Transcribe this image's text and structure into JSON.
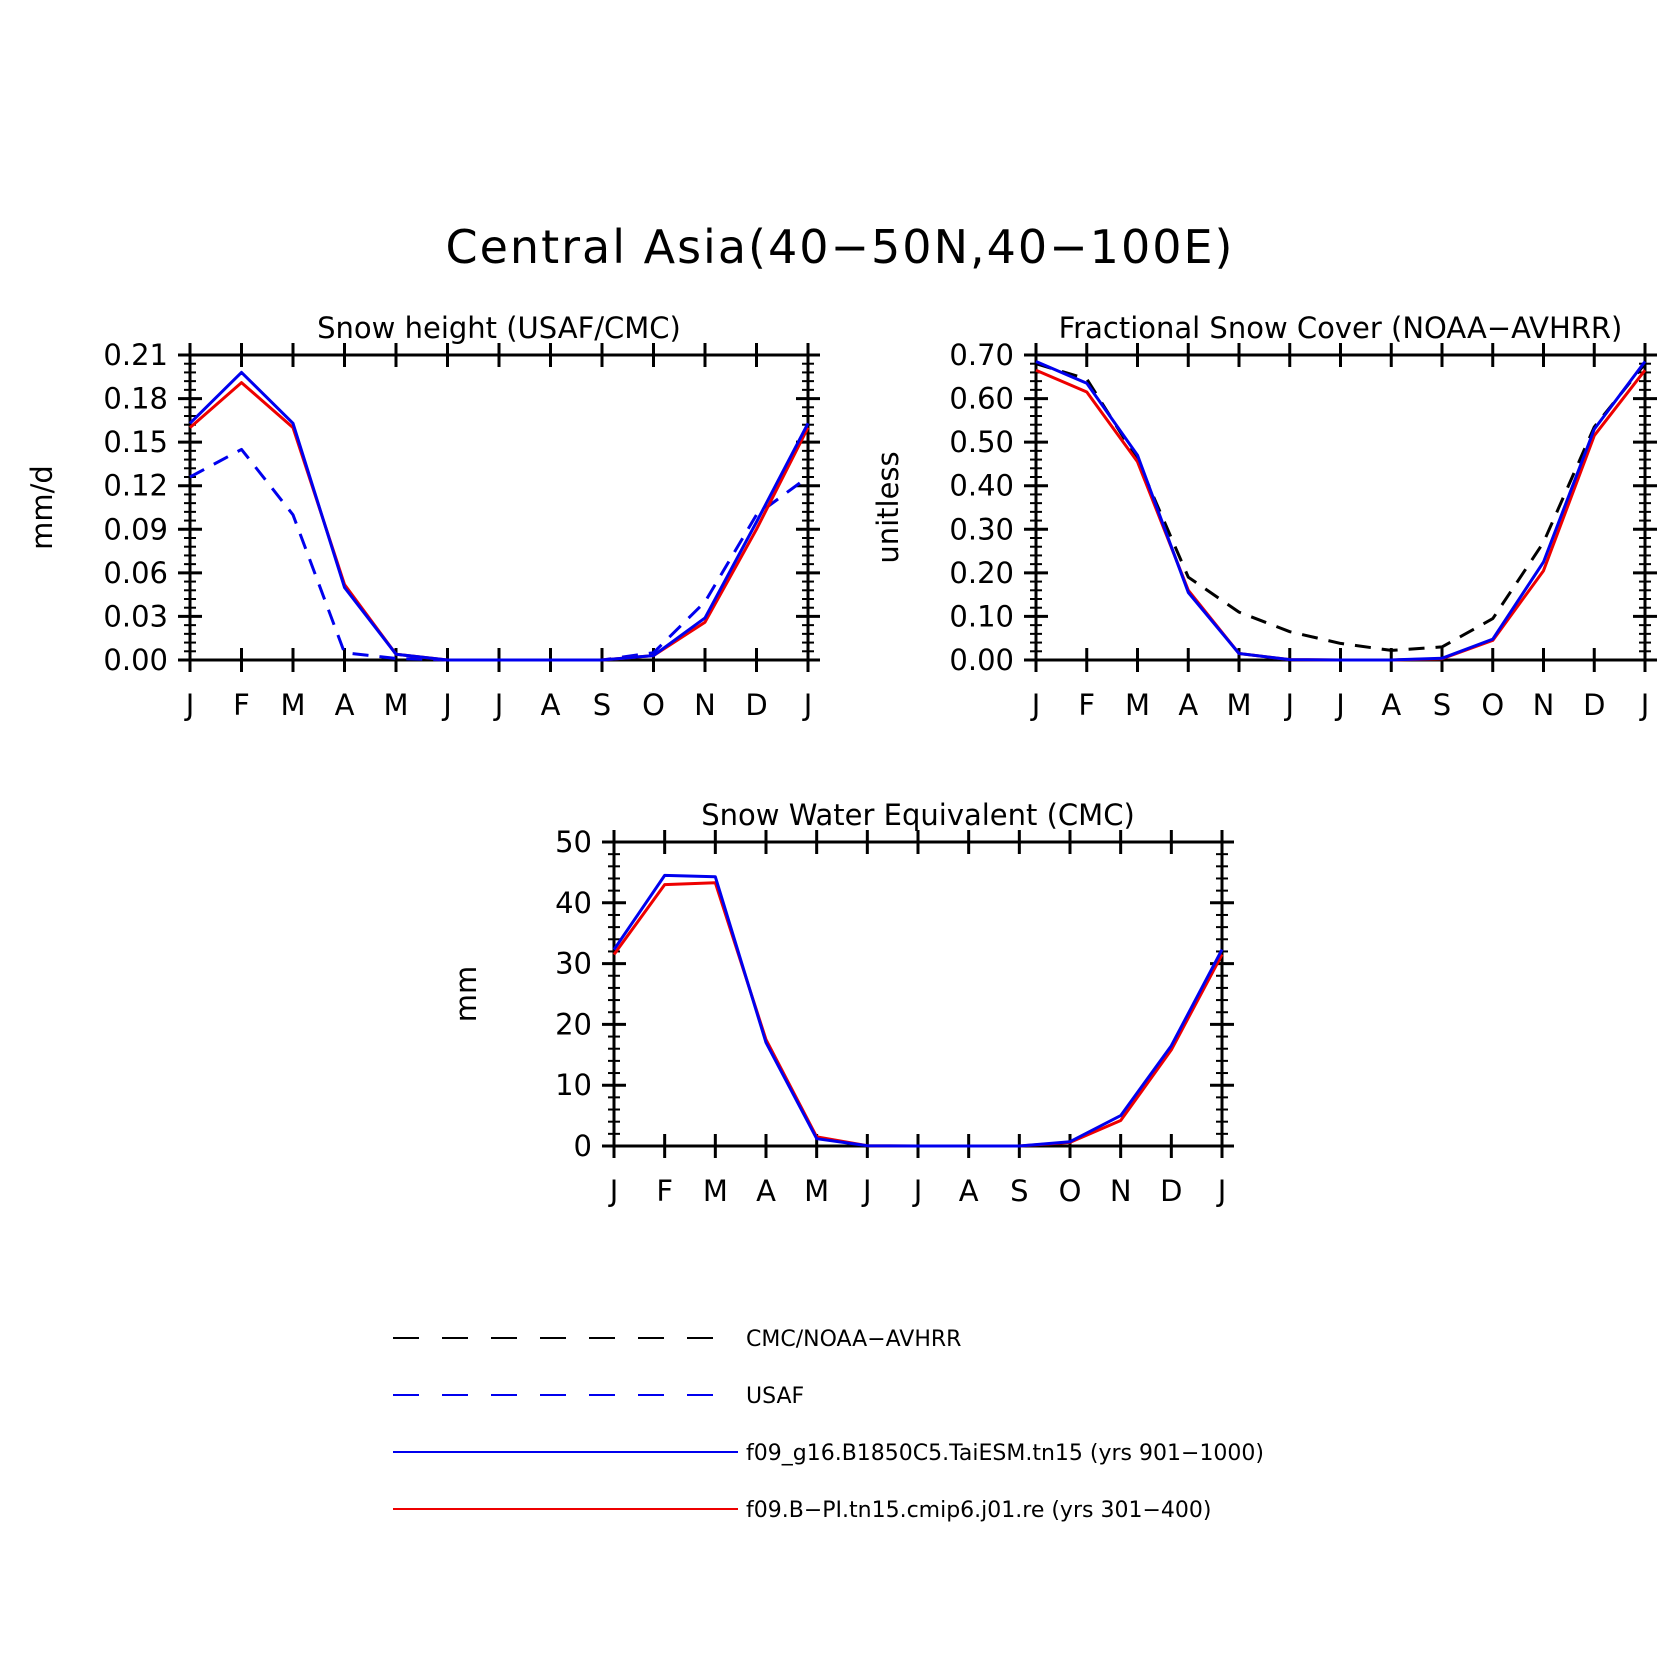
{
  "figure": {
    "title": "Central Asia(40−50N,40−100E)"
  },
  "months": [
    "J",
    "F",
    "M",
    "A",
    "M",
    "J",
    "J",
    "A",
    "S",
    "O",
    "N",
    "D",
    "J"
  ],
  "colors": {
    "model1": "#0000ee",
    "model2": "#ee0000",
    "obs_cmc": "#000000",
    "obs_usaf": "#0000ee"
  },
  "legend": [
    {
      "label": "CMC/NOAA−AVHRR",
      "color": "#000000",
      "dash": true
    },
    {
      "label": "USAF",
      "color": "#0000ee",
      "dash": true
    },
    {
      "label": "f09_g16.B1850C5.TaiESM.tn15 (yrs 901−1000)",
      "color": "#0000ee",
      "dash": false
    },
    {
      "label": "f09.B−PI.tn15.cmip6.j01.re (yrs 301−400)",
      "color": "#ee0000",
      "dash": false
    }
  ],
  "chart_data": [
    {
      "type": "line",
      "title": "Snow height (USAF/CMC)",
      "ylabel": "mm/d",
      "xlabel": "",
      "ylim": [
        0,
        0.21
      ],
      "yticks": [
        "0.00",
        "0.03",
        "0.06",
        "0.09",
        "0.12",
        "0.15",
        "0.18",
        "0.21"
      ],
      "series": [
        {
          "name": "USAF",
          "color": "#0000ee",
          "dash": true,
          "values": [
            0.126,
            0.145,
            0.1,
            0.005,
            0.001,
            0.0,
            0.0,
            0.0,
            0.0,
            0.005,
            0.04,
            0.1,
            0.126
          ]
        },
        {
          "name": "f09.B−PI.tn15.cmip6.j01.re (yrs 301−400)",
          "color": "#ee0000",
          "dash": false,
          "values": [
            0.16,
            0.191,
            0.16,
            0.052,
            0.004,
            0.0,
            0.0,
            0.0,
            0.0,
            0.003,
            0.026,
            0.09,
            0.16
          ]
        },
        {
          "name": "f09_g16.B1850C5.TaiESM.tn15 (yrs 901−1000)",
          "color": "#0000ee",
          "dash": false,
          "values": [
            0.163,
            0.198,
            0.163,
            0.05,
            0.004,
            0.0,
            0.0,
            0.0,
            0.0,
            0.003,
            0.029,
            0.095,
            0.163
          ]
        }
      ]
    },
    {
      "type": "line",
      "title": "Fractional Snow Cover (NOAA−AVHRR)",
      "ylabel": "unitless",
      "xlabel": "",
      "ylim": [
        0,
        0.7
      ],
      "yticks": [
        "0.00",
        "0.10",
        "0.20",
        "0.30",
        "0.40",
        "0.50",
        "0.60",
        "0.70"
      ],
      "series": [
        {
          "name": "CMC/NOAA−AVHRR",
          "color": "#000000",
          "dash": true,
          "values": [
            0.68,
            0.645,
            0.46,
            0.19,
            0.11,
            0.065,
            0.038,
            0.022,
            0.03,
            0.095,
            0.27,
            0.535,
            0.68
          ]
        },
        {
          "name": "f09.B−PI.tn15.cmip6.j01.re (yrs 301−400)",
          "color": "#ee0000",
          "dash": false,
          "values": [
            0.665,
            0.615,
            0.455,
            0.16,
            0.015,
            0.001,
            0.0,
            0.0,
            0.003,
            0.045,
            0.205,
            0.515,
            0.665
          ]
        },
        {
          "name": "f09_g16.B1850C5.TaiESM.tn15 (yrs 901−1000)",
          "color": "#0000ee",
          "dash": false,
          "values": [
            0.685,
            0.635,
            0.47,
            0.155,
            0.015,
            0.001,
            0.0,
            0.0,
            0.004,
            0.048,
            0.225,
            0.53,
            0.685
          ]
        }
      ]
    },
    {
      "type": "line",
      "title": "Snow Water Equivalent (CMC)",
      "ylabel": "mm",
      "xlabel": "",
      "ylim": [
        0,
        50
      ],
      "yticks": [
        "0",
        "10",
        "20",
        "30",
        "40",
        "50"
      ],
      "series": [
        {
          "name": "CMC/NOAA−AVHRR",
          "color": "#000000",
          "dash": true,
          "values": [
            0,
            0,
            0,
            0,
            0,
            0,
            0,
            0,
            0,
            0,
            0,
            0,
            0
          ]
        },
        {
          "name": "f09.B−PI.tn15.cmip6.j01.re (yrs 301−400)",
          "color": "#ee0000",
          "dash": false,
          "values": [
            31.5,
            43.0,
            43.3,
            17.5,
            1.5,
            0.05,
            0.0,
            0.0,
            0.0,
            0.6,
            4.2,
            15.8,
            31.5
          ]
        },
        {
          "name": "f09_g16.B1850C5.TaiESM.tn15 (yrs 901−1000)",
          "color": "#0000ee",
          "dash": false,
          "values": [
            32.3,
            44.5,
            44.3,
            17.0,
            1.2,
            0.05,
            0.0,
            0.0,
            0.0,
            0.7,
            5.0,
            16.5,
            32.3
          ]
        }
      ]
    }
  ]
}
